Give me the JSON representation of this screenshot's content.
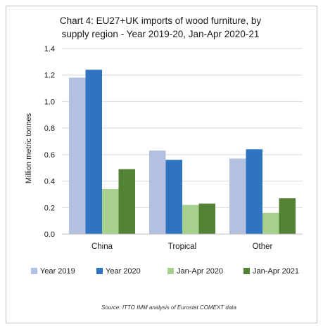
{
  "chart_data": {
    "type": "bar",
    "title_line1": "Chart 4: EU27+UK imports of wood furniture, by",
    "title_line2": "supply region - Year 2019-20, Jan-Apr 2020-21",
    "ylabel": "Million metric tonnes",
    "xlabel": "",
    "ylim": [
      0,
      1.4
    ],
    "yticks": [
      "0.0",
      "0.2",
      "0.4",
      "0.6",
      "0.8",
      "1.0",
      "1.2",
      "1.4"
    ],
    "grid": true,
    "legend_position": "bottom",
    "categories": [
      "China",
      "Tropical",
      "Other"
    ],
    "series": [
      {
        "name": "Year 2019",
        "color": "#b4c0e2",
        "values": [
          1.18,
          0.63,
          0.57
        ]
      },
      {
        "name": "Year 2020",
        "color": "#2e74c0",
        "values": [
          1.24,
          0.56,
          0.64
        ]
      },
      {
        "name": "Jan-Apr 2020",
        "color": "#a8d08d",
        "values": [
          0.34,
          0.22,
          0.16
        ]
      },
      {
        "name": "Jan-Apr 2021",
        "color": "#548235",
        "values": [
          0.49,
          0.23,
          0.27
        ]
      }
    ],
    "source": "Source: ITTO IMM analysis of Eurostat COMEXT data"
  }
}
